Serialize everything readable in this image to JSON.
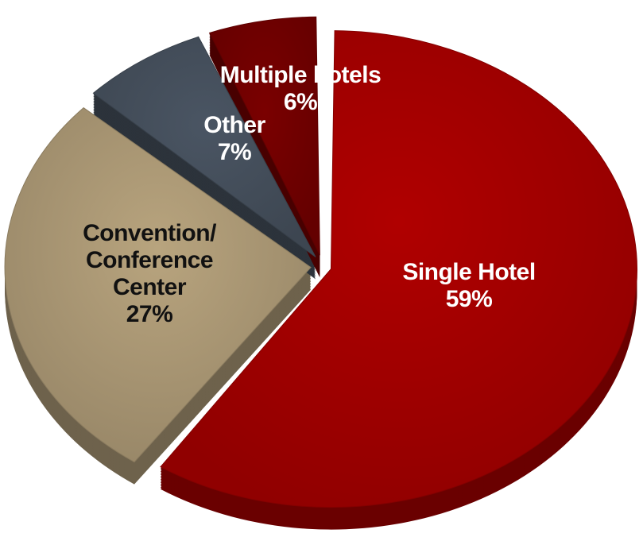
{
  "chart_data": {
    "type": "pie",
    "categories": [
      "Single Hotel",
      "Convention/ Conference Center",
      "Other",
      "Multiple hotels"
    ],
    "values": [
      59,
      27,
      7,
      6
    ],
    "value_labels": [
      "59%",
      "27%",
      "7%",
      "6%"
    ],
    "colors": [
      "#b00000",
      "#b8a47e",
      "#4a5563",
      "#7a0000"
    ]
  }
}
